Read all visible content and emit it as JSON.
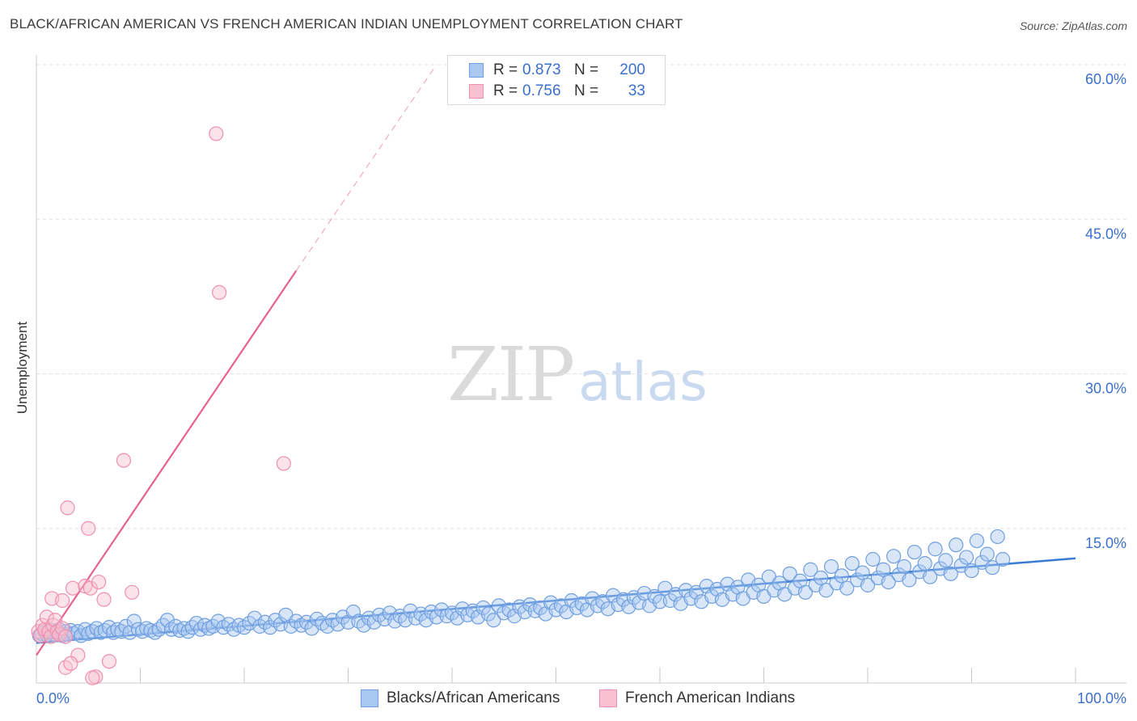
{
  "header": {
    "title": "BLACK/AFRICAN AMERICAN VS FRENCH AMERICAN INDIAN UNEMPLOYMENT CORRELATION CHART",
    "source": "Source: ZipAtlas.com"
  },
  "watermark": {
    "zip": "ZIP",
    "atlas": "atlas"
  },
  "legend_stats": [
    {
      "r_label": "R = ",
      "r_value": "0.873",
      "n_label": "N = ",
      "n_value": "200",
      "color": "#a8c8f0",
      "border": "#6f9fe0"
    },
    {
      "r_label": "R = ",
      "r_value": "0.756",
      "n_label": "N = ",
      "n_value": "33",
      "color": "#f9c0d0",
      "border": "#ef8fae"
    }
  ],
  "colors": {
    "blue_fill": "#a8c8f0",
    "blue_stroke": "#6f9fe0",
    "blue_line": "#3a7bd5",
    "pink_fill": "#f9c0d0",
    "pink_stroke": "#ef8fae",
    "pink_line": "#e8608f",
    "tick_text": "#3b6fcc",
    "grid": "#e0e0e0"
  },
  "chart_data": {
    "type": "scatter",
    "title": "BLACK/AFRICAN AMERICAN VS FRENCH AMERICAN INDIAN UNEMPLOYMENT CORRELATION CHART",
    "xlabel": "",
    "ylabel": "Unemployment",
    "xlim": [
      0,
      100
    ],
    "ylim": [
      0,
      60
    ],
    "x_tick_labels": [
      "0.0%",
      "100.0%"
    ],
    "y_ticks": [
      15,
      30,
      45,
      60
    ],
    "y_tick_labels": [
      "15.0%",
      "30.0%",
      "45.0%",
      "60.0%"
    ],
    "grid": true,
    "legend_position": "bottom-center",
    "series": [
      {
        "name": "Blacks/African Americans",
        "r": 0.873,
        "n": 200,
        "trend": {
          "x": [
            0,
            100
          ],
          "y": [
            3.9,
            12.1
          ],
          "style": "solid"
        },
        "points": [
          [
            0.3,
            4.6
          ],
          [
            0.5,
            4.8
          ],
          [
            0.8,
            5.0
          ],
          [
            1.0,
            4.7
          ],
          [
            1.3,
            4.9
          ],
          [
            1.5,
            5.1
          ],
          [
            1.8,
            4.7
          ],
          [
            2.0,
            4.9
          ],
          [
            2.2,
            5.2
          ],
          [
            2.5,
            4.6
          ],
          [
            2.8,
            5.0
          ],
          [
            3.0,
            4.7
          ],
          [
            3.3,
            5.1
          ],
          [
            3.6,
            4.8
          ],
          [
            4.0,
            5.0
          ],
          [
            4.3,
            4.6
          ],
          [
            4.7,
            5.2
          ],
          [
            5.0,
            4.8
          ],
          [
            5.4,
            5.0
          ],
          [
            5.8,
            5.3
          ],
          [
            6.2,
            4.9
          ],
          [
            6.6,
            5.1
          ],
          [
            7.0,
            5.4
          ],
          [
            7.4,
            4.9
          ],
          [
            7.8,
            5.2
          ],
          [
            8.2,
            5.0
          ],
          [
            8.6,
            5.5
          ],
          [
            9.0,
            4.9
          ],
          [
            9.4,
            6.0
          ],
          [
            9.8,
            5.2
          ],
          [
            10.2,
            5.0
          ],
          [
            10.6,
            5.3
          ],
          [
            11.0,
            5.1
          ],
          [
            11.4,
            4.9
          ],
          [
            11.8,
            5.2
          ],
          [
            12.2,
            5.6
          ],
          [
            12.6,
            6.1
          ],
          [
            13.0,
            5.2
          ],
          [
            13.4,
            5.5
          ],
          [
            13.8,
            5.1
          ],
          [
            14.2,
            5.3
          ],
          [
            14.6,
            5.0
          ],
          [
            15.0,
            5.4
          ],
          [
            15.4,
            5.8
          ],
          [
            15.8,
            5.2
          ],
          [
            16.2,
            5.6
          ],
          [
            16.6,
            5.3
          ],
          [
            17.0,
            5.5
          ],
          [
            17.5,
            6.0
          ],
          [
            18.0,
            5.4
          ],
          [
            18.5,
            5.7
          ],
          [
            19.0,
            5.2
          ],
          [
            19.5,
            5.6
          ],
          [
            20.0,
            5.4
          ],
          [
            20.5,
            5.8
          ],
          [
            21.0,
            6.3
          ],
          [
            21.5,
            5.5
          ],
          [
            22.0,
            5.9
          ],
          [
            22.5,
            5.4
          ],
          [
            23.0,
            6.1
          ],
          [
            23.5,
            5.7
          ],
          [
            24.0,
            6.6
          ],
          [
            24.5,
            5.5
          ],
          [
            25.0,
            6.0
          ],
          [
            25.5,
            5.6
          ],
          [
            26.0,
            5.9
          ],
          [
            26.5,
            5.3
          ],
          [
            27.0,
            6.2
          ],
          [
            27.5,
            5.8
          ],
          [
            28.0,
            5.5
          ],
          [
            28.5,
            6.1
          ],
          [
            29.0,
            5.7
          ],
          [
            29.5,
            6.4
          ],
          [
            30.0,
            5.9
          ],
          [
            30.5,
            6.9
          ],
          [
            31.0,
            6.0
          ],
          [
            31.5,
            5.6
          ],
          [
            32.0,
            6.3
          ],
          [
            32.5,
            5.9
          ],
          [
            33.0,
            6.6
          ],
          [
            33.5,
            6.2
          ],
          [
            34.0,
            6.8
          ],
          [
            34.5,
            6.0
          ],
          [
            35.0,
            6.5
          ],
          [
            35.5,
            6.1
          ],
          [
            36.0,
            7.0
          ],
          [
            36.5,
            6.3
          ],
          [
            37.0,
            6.7
          ],
          [
            37.5,
            6.1
          ],
          [
            38.0,
            6.9
          ],
          [
            38.5,
            6.4
          ],
          [
            39.0,
            7.1
          ],
          [
            39.5,
            6.5
          ],
          [
            40.0,
            6.8
          ],
          [
            40.5,
            6.3
          ],
          [
            41.0,
            7.2
          ],
          [
            41.5,
            6.6
          ],
          [
            42.0,
            7.0
          ],
          [
            42.5,
            6.4
          ],
          [
            43.0,
            7.3
          ],
          [
            43.5,
            6.7
          ],
          [
            44.0,
            6.1
          ],
          [
            44.5,
            7.5
          ],
          [
            45.0,
            6.8
          ],
          [
            45.5,
            7.1
          ],
          [
            46.0,
            6.5
          ],
          [
            46.5,
            7.4
          ],
          [
            47.0,
            6.9
          ],
          [
            47.5,
            7.6
          ],
          [
            48.0,
            7.0
          ],
          [
            48.5,
            7.3
          ],
          [
            49.0,
            6.7
          ],
          [
            49.5,
            7.8
          ],
          [
            50.0,
            7.1
          ],
          [
            50.5,
            7.5
          ],
          [
            51.0,
            6.9
          ],
          [
            51.5,
            8.0
          ],
          [
            52.0,
            7.3
          ],
          [
            52.5,
            7.7
          ],
          [
            53.0,
            7.1
          ],
          [
            53.5,
            8.2
          ],
          [
            54.0,
            7.5
          ],
          [
            54.5,
            7.9
          ],
          [
            55.0,
            7.2
          ],
          [
            55.5,
            8.5
          ],
          [
            56.0,
            7.6
          ],
          [
            56.5,
            8.1
          ],
          [
            57.0,
            7.4
          ],
          [
            57.5,
            8.3
          ],
          [
            58.0,
            7.8
          ],
          [
            58.5,
            8.7
          ],
          [
            59.0,
            7.5
          ],
          [
            59.5,
            8.4
          ],
          [
            60.0,
            7.9
          ],
          [
            60.5,
            9.2
          ],
          [
            61.0,
            8.0
          ],
          [
            61.5,
            8.6
          ],
          [
            62.0,
            7.7
          ],
          [
            62.5,
            9.0
          ],
          [
            63.0,
            8.2
          ],
          [
            63.5,
            8.8
          ],
          [
            64.0,
            7.9
          ],
          [
            64.5,
            9.4
          ],
          [
            65.0,
            8.4
          ],
          [
            65.5,
            9.1
          ],
          [
            66.0,
            8.1
          ],
          [
            66.5,
            9.6
          ],
          [
            67.0,
            8.6
          ],
          [
            67.5,
            9.3
          ],
          [
            68.0,
            8.2
          ],
          [
            68.5,
            10.0
          ],
          [
            69.0,
            8.8
          ],
          [
            69.5,
            9.5
          ],
          [
            70.0,
            8.4
          ],
          [
            70.5,
            10.3
          ],
          [
            71.0,
            9.0
          ],
          [
            71.5,
            9.7
          ],
          [
            72.0,
            8.6
          ],
          [
            72.5,
            10.6
          ],
          [
            73.0,
            9.2
          ],
          [
            73.5,
            9.9
          ],
          [
            74.0,
            8.8
          ],
          [
            74.5,
            11.0
          ],
          [
            75.0,
            9.5
          ],
          [
            75.5,
            10.2
          ],
          [
            76.0,
            9.0
          ],
          [
            76.5,
            11.3
          ],
          [
            77.0,
            9.7
          ],
          [
            77.5,
            10.4
          ],
          [
            78.0,
            9.2
          ],
          [
            78.5,
            11.6
          ],
          [
            79.0,
            10.0
          ],
          [
            79.5,
            10.7
          ],
          [
            80.0,
            9.5
          ],
          [
            80.5,
            12.0
          ],
          [
            81.0,
            10.2
          ],
          [
            81.5,
            11.0
          ],
          [
            82.0,
            9.8
          ],
          [
            82.5,
            12.3
          ],
          [
            83.0,
            10.5
          ],
          [
            83.5,
            11.3
          ],
          [
            84.0,
            10.0
          ],
          [
            84.5,
            12.7
          ],
          [
            85.0,
            10.8
          ],
          [
            85.5,
            11.6
          ],
          [
            86.0,
            10.3
          ],
          [
            86.5,
            13.0
          ],
          [
            87.0,
            11.1
          ],
          [
            87.5,
            11.9
          ],
          [
            88.0,
            10.6
          ],
          [
            88.5,
            13.4
          ],
          [
            89.0,
            11.4
          ],
          [
            89.5,
            12.2
          ],
          [
            90.0,
            10.9
          ],
          [
            90.5,
            13.8
          ],
          [
            91.0,
            11.7
          ],
          [
            91.5,
            12.5
          ],
          [
            92.0,
            11.2
          ],
          [
            92.5,
            14.2
          ],
          [
            93.0,
            12.0
          ]
        ]
      },
      {
        "name": "French American Indians",
        "r": 0.756,
        "n": 33,
        "trend": {
          "x": [
            0,
            25
          ],
          "y": [
            2.7,
            40.0
          ],
          "dashed_extension": {
            "x": [
              25,
              38.5
            ],
            "y": [
              40.0,
              60.0
            ]
          }
        },
        "points": [
          [
            0.2,
            5.0
          ],
          [
            0.4,
            4.6
          ],
          [
            0.6,
            5.6
          ],
          [
            0.8,
            5.2
          ],
          [
            1.0,
            6.4
          ],
          [
            1.2,
            5.0
          ],
          [
            1.4,
            4.5
          ],
          [
            1.6,
            5.6
          ],
          [
            1.8,
            6.1
          ],
          [
            2.0,
            5.0
          ],
          [
            2.2,
            4.7
          ],
          [
            2.5,
            5.3
          ],
          [
            2.8,
            4.5
          ],
          [
            1.5,
            8.2
          ],
          [
            2.5,
            8.0
          ],
          [
            3.0,
            17.0
          ],
          [
            3.5,
            9.2
          ],
          [
            4.0,
            2.7
          ],
          [
            4.7,
            9.4
          ],
          [
            5.0,
            15.0
          ],
          [
            5.2,
            9.2
          ],
          [
            5.7,
            0.6
          ],
          [
            6.0,
            9.8
          ],
          [
            6.5,
            8.1
          ],
          [
            7.0,
            2.1
          ],
          [
            8.4,
            21.6
          ],
          [
            9.2,
            8.8
          ],
          [
            17.3,
            53.3
          ],
          [
            17.6,
            37.9
          ],
          [
            23.8,
            21.3
          ],
          [
            2.8,
            1.5
          ],
          [
            3.3,
            1.9
          ],
          [
            5.4,
            0.5
          ]
        ]
      }
    ]
  },
  "bottom_legend": [
    {
      "label": "Blacks/African Americans"
    },
    {
      "label": "French American Indians"
    }
  ]
}
